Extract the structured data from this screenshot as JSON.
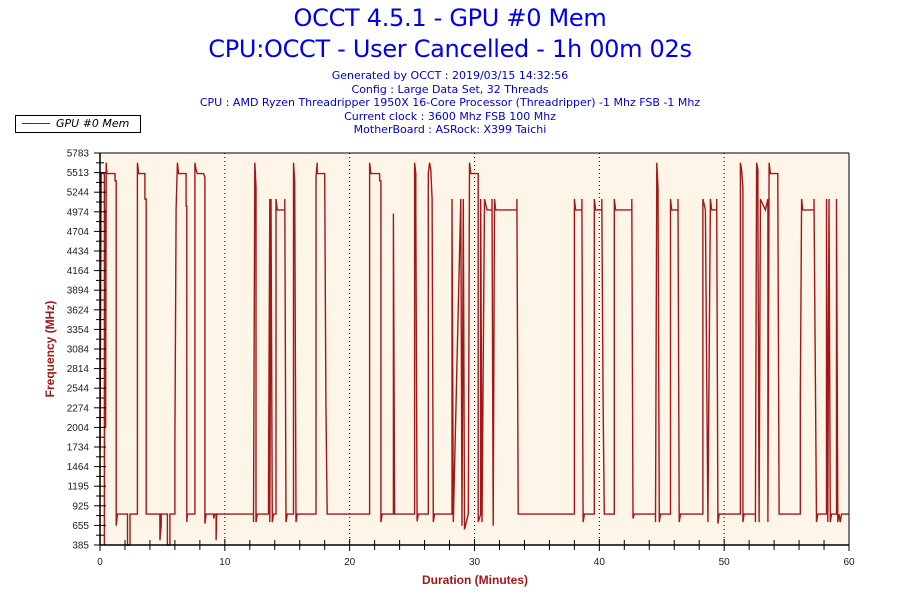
{
  "header": {
    "title_line1": "OCCT 4.5.1 - GPU #0 Mem",
    "title_line2": "CPU:OCCT - User Cancelled - 1h 00m 02s",
    "info": [
      "Generated by OCCT : 2019/03/15 14:32:56",
      "Config : Large Data Set, 32 Threads",
      "CPU : AMD Ryzen Threadripper 1950X 16-Core Processor (Threadripper) -1 Mhz FSB -1 Mhz",
      "Current clock : 3600 Mhz FSB 100 Mhz",
      "MotherBoard : ASRock: X399 Taichi"
    ]
  },
  "legend": {
    "label": "GPU #0 Mem",
    "color": "#8b1a1a"
  },
  "colors": {
    "plot_bg": "#fdf6e8",
    "line": "#a01818",
    "axis": "#000000",
    "title": "#0000ee",
    "axis_label": "#a01818"
  },
  "chart_data": {
    "type": "line",
    "title": "OCCT 4.5.1 - GPU #0 Mem",
    "subtitle": "CPU:OCCT - User Cancelled - 1h 00m 02s",
    "xlabel": "Duration (Minutes)",
    "ylabel": "Frequency (MHz)",
    "xlim": [
      0,
      60
    ],
    "ylim": [
      385,
      5783
    ],
    "x_ticks": [
      0,
      10,
      20,
      30,
      40,
      50,
      60
    ],
    "y_ticks": [
      385,
      655,
      925,
      1195,
      1464,
      1734,
      2004,
      2274,
      2544,
      2814,
      3084,
      3354,
      3624,
      3894,
      4164,
      4434,
      4704,
      4974,
      5244,
      5513,
      5783
    ],
    "grid": "vertical dotted at 10-min intervals",
    "legend_position": "top-left",
    "series": [
      {
        "name": "GPU #0 Mem",
        "points": [
          [
            0.0,
            1700
          ],
          [
            0.1,
            5500
          ],
          [
            0.35,
            5500
          ],
          [
            0.35,
            385
          ],
          [
            0.4,
            5000
          ],
          [
            0.45,
            2000
          ],
          [
            0.5,
            5650
          ],
          [
            0.55,
            5500
          ],
          [
            1.0,
            5500
          ],
          [
            1.2,
            5500
          ],
          [
            1.2,
            5400
          ],
          [
            1.3,
            5400
          ],
          [
            1.3,
            650
          ],
          [
            1.4,
            810
          ],
          [
            2.2,
            810
          ],
          [
            2.2,
            385
          ],
          [
            2.4,
            385
          ],
          [
            2.4,
            810
          ],
          [
            3.0,
            810
          ],
          [
            3.0,
            5650
          ],
          [
            3.1,
            5500
          ],
          [
            3.6,
            5500
          ],
          [
            3.6,
            5150
          ],
          [
            3.7,
            5150
          ],
          [
            3.7,
            810
          ],
          [
            4.8,
            810
          ],
          [
            4.8,
            450
          ],
          [
            4.9,
            650
          ],
          [
            4.9,
            810
          ],
          [
            5.4,
            810
          ],
          [
            5.4,
            385
          ],
          [
            5.6,
            385
          ],
          [
            5.6,
            810
          ],
          [
            6.0,
            810
          ],
          [
            6.0,
            1800
          ],
          [
            6.1,
            5000
          ],
          [
            6.2,
            5650
          ],
          [
            6.3,
            5500
          ],
          [
            6.9,
            5500
          ],
          [
            6.9,
            5050
          ],
          [
            6.95,
            5050
          ],
          [
            6.95,
            700
          ],
          [
            7.0,
            810
          ],
          [
            7.6,
            810
          ],
          [
            7.6,
            5650
          ],
          [
            7.7,
            5550
          ],
          [
            7.8,
            5500
          ],
          [
            8.3,
            5500
          ],
          [
            8.4,
            5450
          ],
          [
            8.4,
            680
          ],
          [
            8.5,
            810
          ],
          [
            9.1,
            810
          ],
          [
            9.1,
            750
          ],
          [
            9.2,
            810
          ],
          [
            9.3,
            810
          ],
          [
            9.3,
            450
          ],
          [
            9.35,
            810
          ],
          [
            12.3,
            810
          ],
          [
            12.3,
            700
          ],
          [
            12.4,
            5650
          ],
          [
            12.45,
            5500
          ],
          [
            12.5,
            5300
          ],
          [
            12.5,
            700
          ],
          [
            12.6,
            810
          ],
          [
            13.5,
            810
          ],
          [
            13.5,
            1200
          ],
          [
            13.6,
            5150
          ],
          [
            13.6,
            700
          ],
          [
            13.7,
            5150
          ],
          [
            13.8,
            700
          ],
          [
            13.9,
            810
          ],
          [
            14.1,
            810
          ],
          [
            14.1,
            5150
          ],
          [
            14.2,
            5000
          ],
          [
            14.8,
            5000
          ],
          [
            14.8,
            5150
          ],
          [
            14.9,
            700
          ],
          [
            15.0,
            810
          ],
          [
            15.5,
            810
          ],
          [
            15.5,
            5650
          ],
          [
            15.6,
            5400
          ],
          [
            15.7,
            700
          ],
          [
            15.8,
            810
          ],
          [
            17.3,
            810
          ],
          [
            17.3,
            5450
          ],
          [
            17.4,
            5650
          ],
          [
            17.4,
            5500
          ],
          [
            18.0,
            5500
          ],
          [
            18.1,
            2350
          ],
          [
            18.2,
            810
          ],
          [
            21.6,
            810
          ],
          [
            21.6,
            5650
          ],
          [
            21.7,
            5500
          ],
          [
            22.4,
            5500
          ],
          [
            22.4,
            5400
          ],
          [
            22.5,
            5400
          ],
          [
            22.5,
            700
          ],
          [
            22.6,
            810
          ],
          [
            23.5,
            810
          ],
          [
            23.5,
            4950
          ],
          [
            23.6,
            810
          ],
          [
            25.2,
            810
          ],
          [
            25.2,
            5650
          ],
          [
            25.3,
            5500
          ],
          [
            25.3,
            5000
          ],
          [
            25.4,
            710
          ],
          [
            25.5,
            810
          ],
          [
            26.3,
            810
          ],
          [
            26.3,
            5500
          ],
          [
            26.4,
            5650
          ],
          [
            26.5,
            5550
          ],
          [
            26.6,
            5150
          ],
          [
            26.7,
            700
          ],
          [
            26.8,
            810
          ],
          [
            28.2,
            810
          ],
          [
            28.2,
            5150
          ],
          [
            28.3,
            700
          ],
          [
            28.9,
            5150
          ],
          [
            29.0,
            650
          ],
          [
            29.1,
            5150
          ],
          [
            29.2,
            600
          ],
          [
            29.5,
            810
          ],
          [
            29.6,
            5650
          ],
          [
            29.7,
            5500
          ],
          [
            30.3,
            5500
          ],
          [
            30.3,
            700
          ],
          [
            30.5,
            810
          ],
          [
            30.5,
            5150
          ],
          [
            30.6,
            700
          ],
          [
            30.8,
            5150
          ],
          [
            31.0,
            5000
          ],
          [
            31.4,
            5000
          ],
          [
            31.4,
            5150
          ],
          [
            31.5,
            650
          ],
          [
            31.6,
            5150
          ],
          [
            31.7,
            5000
          ],
          [
            33.4,
            5000
          ],
          [
            33.4,
            5150
          ],
          [
            33.5,
            810
          ],
          [
            38.0,
            810
          ],
          [
            38.0,
            5150
          ],
          [
            38.1,
            5000
          ],
          [
            38.6,
            5000
          ],
          [
            38.6,
            5150
          ],
          [
            38.7,
            700
          ],
          [
            38.8,
            810
          ],
          [
            39.6,
            810
          ],
          [
            39.6,
            5150
          ],
          [
            39.7,
            5000
          ],
          [
            40.2,
            5000
          ],
          [
            40.2,
            5150
          ],
          [
            40.3,
            2350
          ],
          [
            40.4,
            810
          ],
          [
            41.2,
            810
          ],
          [
            41.2,
            5150
          ],
          [
            41.3,
            5000
          ],
          [
            42.6,
            5000
          ],
          [
            42.6,
            5150
          ],
          [
            42.7,
            750
          ],
          [
            42.8,
            810
          ],
          [
            44.5,
            810
          ],
          [
            44.5,
            700
          ],
          [
            44.6,
            5650
          ],
          [
            44.7,
            5300
          ],
          [
            44.8,
            700
          ],
          [
            44.9,
            810
          ],
          [
            45.7,
            810
          ],
          [
            45.7,
            5150
          ],
          [
            45.8,
            5000
          ],
          [
            46.3,
            5000
          ],
          [
            46.3,
            5150
          ],
          [
            46.4,
            700
          ],
          [
            46.5,
            810
          ],
          [
            48.3,
            810
          ],
          [
            48.3,
            5150
          ],
          [
            48.5,
            5000
          ],
          [
            48.7,
            700
          ],
          [
            48.9,
            5150
          ],
          [
            49.0,
            5000
          ],
          [
            49.4,
            5000
          ],
          [
            49.4,
            5150
          ],
          [
            49.5,
            680
          ],
          [
            49.6,
            810
          ],
          [
            51.3,
            810
          ],
          [
            51.3,
            5650
          ],
          [
            51.4,
            5550
          ],
          [
            51.5,
            5300
          ],
          [
            51.5,
            700
          ],
          [
            51.6,
            810
          ],
          [
            52.5,
            810
          ],
          [
            52.5,
            700
          ],
          [
            52.6,
            5650
          ],
          [
            52.7,
            5550
          ],
          [
            52.7,
            5000
          ],
          [
            52.8,
            700
          ],
          [
            52.9,
            5150
          ],
          [
            53.3,
            5000
          ],
          [
            53.5,
            5150
          ],
          [
            53.5,
            700
          ],
          [
            53.6,
            5650
          ],
          [
            53.7,
            5500
          ],
          [
            54.3,
            5500
          ],
          [
            54.3,
            5400
          ],
          [
            54.4,
            810
          ],
          [
            56.1,
            810
          ],
          [
            56.1,
            2350
          ],
          [
            56.2,
            5150
          ],
          [
            56.3,
            5000
          ],
          [
            57.2,
            5000
          ],
          [
            57.2,
            5150
          ],
          [
            57.4,
            700
          ],
          [
            57.5,
            810
          ],
          [
            58.2,
            810
          ],
          [
            58.2,
            5150
          ],
          [
            58.3,
            700
          ],
          [
            58.4,
            5150
          ],
          [
            58.5,
            700
          ],
          [
            58.6,
            810
          ],
          [
            59.0,
            810
          ],
          [
            59.0,
            5150
          ],
          [
            59.1,
            700
          ],
          [
            59.2,
            810
          ],
          [
            59.3,
            700
          ],
          [
            59.4,
            810
          ],
          [
            60.0,
            810
          ]
        ]
      }
    ]
  }
}
